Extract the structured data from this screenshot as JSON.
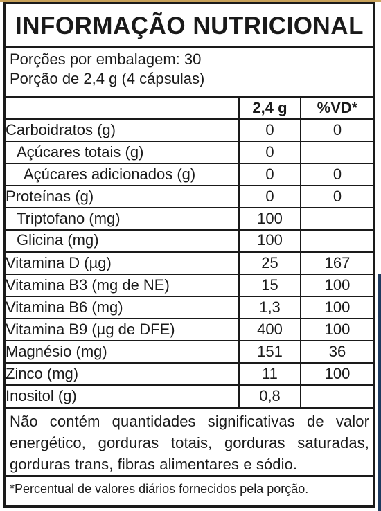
{
  "title": "INFORMAÇÃO NUTRICIONAL",
  "serving": {
    "per_package": "Porções por embalagem: 30",
    "portion": "Porção de 2,4 g (4 cápsulas)"
  },
  "columns": {
    "amount": "2,4 g",
    "vd": "%VD*"
  },
  "rows": [
    {
      "name": "Carboidratos (g)",
      "amount": "0",
      "vd": "0"
    },
    {
      "name": "Açúcares totais (g)",
      "amount": "0",
      "vd": ""
    },
    {
      "name": "Açúcares adicionados (g)",
      "amount": "0",
      "vd": "0"
    },
    {
      "name": "Proteínas (g)",
      "amount": "0",
      "vd": "0"
    },
    {
      "name": "Triptofano (mg)",
      "amount": "100",
      "vd": ""
    },
    {
      "name": "Glicina (mg)",
      "amount": "100",
      "vd": ""
    },
    {
      "name": "Vitamina D (µg)",
      "amount": "25",
      "vd": "167"
    },
    {
      "name": "Vitamina B3 (mg de NE)",
      "amount": "15",
      "vd": "100"
    },
    {
      "name": "Vitamina B6 (mg)",
      "amount": "1,3",
      "vd": "100"
    },
    {
      "name": "Vitamina B9 (µg de DFE)",
      "amount": "400",
      "vd": "100"
    },
    {
      "name": "Magnésio (mg)",
      "amount": "151",
      "vd": "36"
    },
    {
      "name": "Zinco (mg)",
      "amount": "11",
      "vd": "100"
    },
    {
      "name": "Inositol (g)",
      "amount": "0,8",
      "vd": ""
    }
  ],
  "note": "Não contém quantidades significativas de valor energético, gorduras totais, gorduras saturadas, gorduras trans, fibras alimentares e sódio.",
  "footnote": "*Percentual de valores diários fornecidos pela porção."
}
